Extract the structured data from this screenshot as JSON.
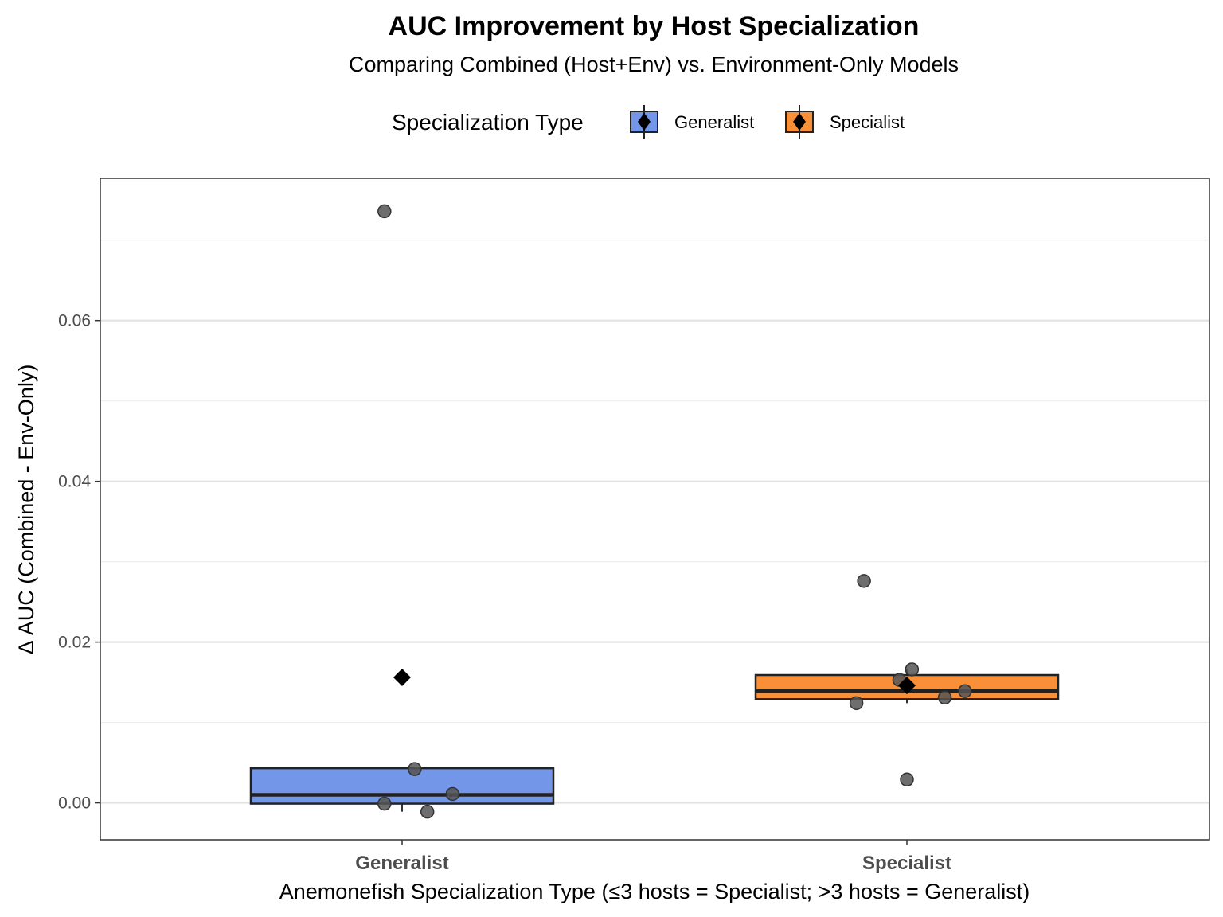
{
  "chart_data": {
    "type": "box",
    "title": "AUC Improvement by Host Specialization",
    "subtitle": "Comparing Combined (Host+Env) vs. Environment-Only Models",
    "xlabel": "Anemonefish Specialization Type (≤3 hosts = Specialist; >3 hosts = Generalist)",
    "ylabel": "Δ AUC (Combined - Env-Only)",
    "ylim": [
      -0.0046,
      0.0777
    ],
    "yticks": [
      0.0,
      0.02,
      0.04,
      0.06
    ],
    "ytick_labels": [
      "0.00",
      "0.02",
      "0.04",
      "0.06"
    ],
    "grid": true,
    "legend": {
      "title": "Specialization Type",
      "position": "top",
      "entries": [
        "Generalist",
        "Specialist"
      ]
    },
    "categories": [
      "Generalist",
      "Specialist"
    ],
    "colors": {
      "Generalist": "#7396e8",
      "Specialist": "#f98f37",
      "points": "#555555",
      "mean_marker": "#000000"
    },
    "boxes": [
      {
        "category": "Generalist",
        "q1": -0.0001,
        "median": 0.001,
        "q3": 0.0043,
        "whisker_low": -0.0011,
        "whisker_high": 0.0043,
        "mean": 0.0156
      },
      {
        "category": "Specialist",
        "q1": 0.0129,
        "median": 0.0139,
        "q3": 0.0159,
        "whisker_low": 0.0124,
        "whisker_high": 0.0166,
        "mean": 0.0146
      }
    ],
    "points": [
      {
        "category": "Generalist",
        "jitter": -0.07,
        "value": 0.0736
      },
      {
        "category": "Generalist",
        "jitter": 0.05,
        "value": 0.0042
      },
      {
        "category": "Generalist",
        "jitter": 0.2,
        "value": 0.0011
      },
      {
        "category": "Generalist",
        "jitter": -0.07,
        "value": -0.0001
      },
      {
        "category": "Generalist",
        "jitter": 0.1,
        "value": -0.0011
      },
      {
        "category": "Specialist",
        "jitter": -0.17,
        "value": 0.0276
      },
      {
        "category": "Specialist",
        "jitter": 0.02,
        "value": 0.0166
      },
      {
        "category": "Specialist",
        "jitter": -0.03,
        "value": 0.0153
      },
      {
        "category": "Specialist",
        "jitter": 0.23,
        "value": 0.0139
      },
      {
        "category": "Specialist",
        "jitter": 0.15,
        "value": 0.0131
      },
      {
        "category": "Specialist",
        "jitter": -0.2,
        "value": 0.0124
      },
      {
        "category": "Specialist",
        "jitter": 0.0,
        "value": 0.0029
      }
    ]
  }
}
